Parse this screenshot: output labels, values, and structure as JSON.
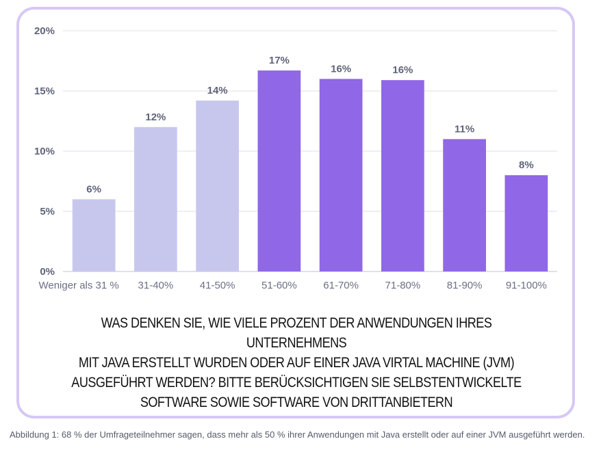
{
  "chart_data": {
    "type": "bar",
    "title": "",
    "xlabel": "",
    "ylabel": "",
    "categories": [
      "Weniger als 31 %",
      "31-40%",
      "41-50%",
      "51-60%",
      "61-70%",
      "71-80%",
      "81-90%",
      "91-100%"
    ],
    "values": [
      6,
      12,
      14.2,
      16.7,
      16.0,
      15.9,
      11,
      8
    ],
    "data_labels": [
      "6%",
      "12%",
      "14%",
      "17%",
      "16%",
      "16%",
      "11%",
      "8%"
    ],
    "highlight": [
      false,
      false,
      false,
      true,
      true,
      true,
      true,
      true
    ],
    "ylim": [
      0,
      20
    ],
    "yticks": [
      0,
      5,
      10,
      15,
      20
    ],
    "ytick_labels": [
      "0%",
      "5%",
      "10%",
      "15%",
      "20%"
    ],
    "grid": true,
    "colors": {
      "muted": "#c7c7ee",
      "highlight": "#9067e6",
      "grid": "#e6e3ee",
      "axis": "#cfcbe0"
    }
  },
  "question": [
    "WAS DENKEN SIE, WIE VIELE PROZENT DER ANWENDUNGEN IHRES UNTERNEHMENS",
    "MIT JAVA ERSTELLT WURDEN ODER AUF EINER JAVA VIRTAL MACHINE (JVM)",
    "AUSGEFÜHRT WERDEN? BITTE BERÜCKSICHTIGEN SIE SELBSTENTWICKELTE",
    "SOFTWARE SOWIE SOFTWARE VON DRITTANBIETERN"
  ],
  "caption": "Abbildung 1: 68 % der Umfrageteilnehmer sagen, dass mehr als 50 % ihrer Anwendungen mit Java erstellt oder auf einer JVM ausgeführt werden.",
  "card_border_color": "#d6c8f5"
}
